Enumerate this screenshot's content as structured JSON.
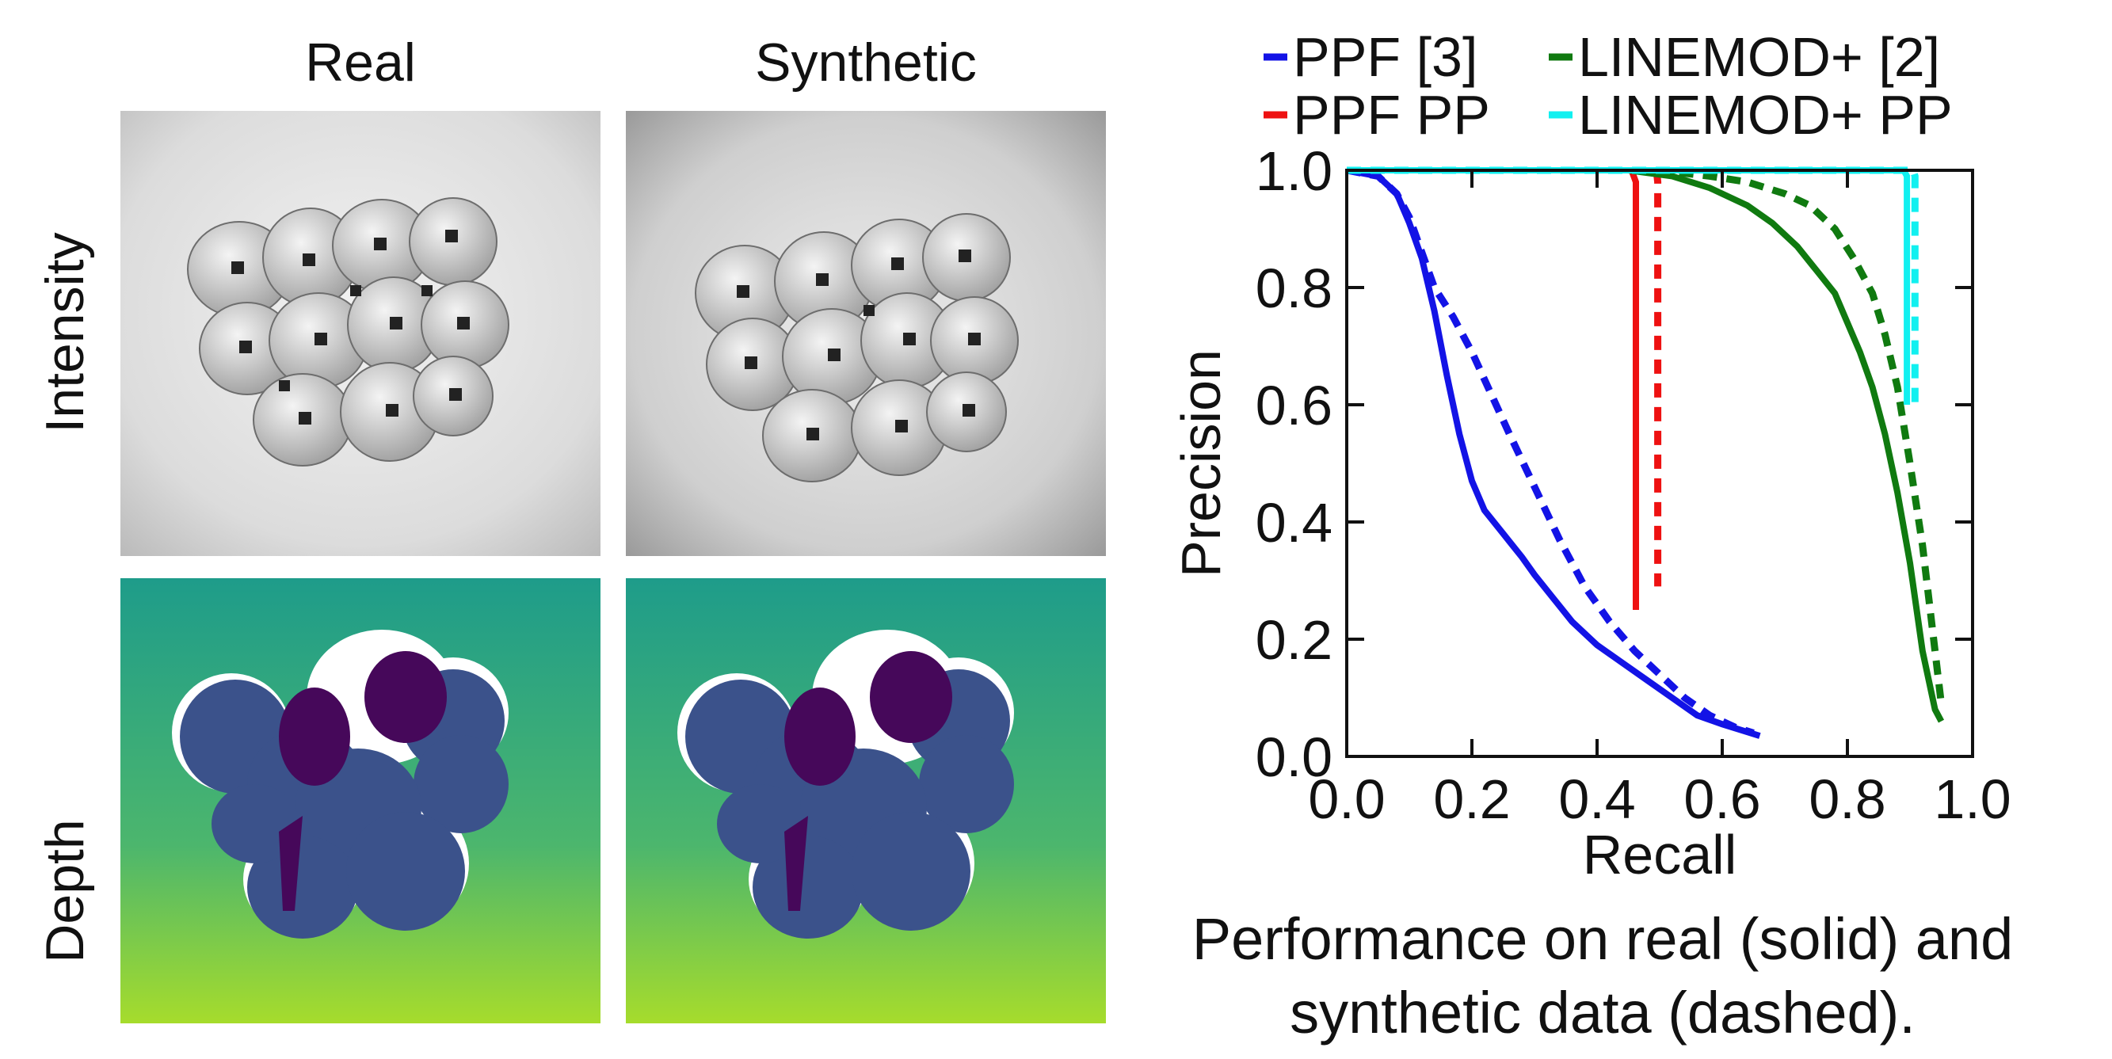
{
  "figure": {
    "column_titles": [
      "Real",
      "Synthetic"
    ],
    "row_titles": [
      "Intensity",
      "Depth"
    ],
    "caption_lines": [
      "Performance on real (solid) and",
      "synthetic data (dashed)."
    ]
  },
  "colors": {
    "ppf": "#1313e6",
    "ppf_pp": "#ee1111",
    "linemod": "#107a10",
    "linemod_pp": "#11f0f0",
    "depth_background_top": "#1e9c8a",
    "depth_background_bottom": "#a6dc2c",
    "depth_object_dark": "#46085a",
    "depth_object_mid": "#3b528b"
  },
  "chart_data": {
    "type": "line",
    "xlabel": "Recall",
    "ylabel": "Precision",
    "xlim": [
      0.0,
      1.0
    ],
    "ylim": [
      0.0,
      1.0
    ],
    "xticks": [
      "0.0",
      "0.2",
      "0.4",
      "0.6",
      "0.8",
      "1.0"
    ],
    "yticks": [
      "0.0",
      "0.2",
      "0.4",
      "0.6",
      "0.8",
      "1.0"
    ],
    "grid": false,
    "legend_position": "top",
    "legend": [
      "PPF [3]",
      "LINEMOD+ [2]",
      "PPF PP",
      "LINEMOD+ PP"
    ],
    "series": [
      {
        "name": "PPF [3]",
        "style": "solid",
        "color_key": "ppf",
        "x": [
          0.0,
          0.05,
          0.08,
          0.1,
          0.12,
          0.14,
          0.16,
          0.18,
          0.2,
          0.22,
          0.25,
          0.28,
          0.3,
          0.33,
          0.36,
          0.4,
          0.44,
          0.48,
          0.52,
          0.56,
          0.6,
          0.63,
          0.66
        ],
        "y": [
          1.0,
          0.99,
          0.96,
          0.91,
          0.85,
          0.76,
          0.65,
          0.55,
          0.47,
          0.42,
          0.38,
          0.34,
          0.31,
          0.27,
          0.23,
          0.19,
          0.16,
          0.13,
          0.1,
          0.07,
          0.055,
          0.045,
          0.035
        ]
      },
      {
        "name": "PPF [3]",
        "style": "dashed",
        "color_key": "ppf",
        "x": [
          0.0,
          0.05,
          0.08,
          0.1,
          0.12,
          0.14,
          0.17,
          0.2,
          0.23,
          0.26,
          0.3,
          0.34,
          0.38,
          0.42,
          0.46,
          0.5,
          0.54,
          0.58,
          0.62,
          0.65
        ],
        "y": [
          1.0,
          0.99,
          0.96,
          0.92,
          0.86,
          0.8,
          0.75,
          0.69,
          0.62,
          0.55,
          0.46,
          0.37,
          0.29,
          0.23,
          0.18,
          0.14,
          0.1,
          0.07,
          0.05,
          0.04
        ]
      },
      {
        "name": "PPF PP",
        "style": "solid",
        "color_key": "ppf_pp",
        "x": [
          0.0,
          0.455,
          0.462,
          0.462
        ],
        "y": [
          1.0,
          1.0,
          0.98,
          0.25
        ]
      },
      {
        "name": "PPF PP",
        "style": "dashed",
        "color_key": "ppf_pp",
        "x": [
          0.0,
          0.495,
          0.497,
          0.497
        ],
        "y": [
          1.0,
          1.0,
          0.98,
          0.29
        ]
      },
      {
        "name": "LINEMOD+ [2]",
        "style": "solid",
        "color_key": "linemod",
        "x": [
          0.0,
          0.45,
          0.52,
          0.58,
          0.64,
          0.68,
          0.72,
          0.75,
          0.78,
          0.8,
          0.82,
          0.84,
          0.86,
          0.88,
          0.9,
          0.92,
          0.94,
          0.95
        ],
        "y": [
          1.0,
          1.0,
          0.99,
          0.97,
          0.94,
          0.91,
          0.87,
          0.83,
          0.79,
          0.74,
          0.69,
          0.63,
          0.55,
          0.45,
          0.33,
          0.18,
          0.08,
          0.06
        ]
      },
      {
        "name": "LINEMOD+ [2]",
        "style": "dashed",
        "color_key": "linemod",
        "x": [
          0.0,
          0.5,
          0.58,
          0.64,
          0.7,
          0.74,
          0.78,
          0.81,
          0.84,
          0.86,
          0.88,
          0.9,
          0.92,
          0.94,
          0.95
        ],
        "y": [
          1.0,
          1.0,
          0.99,
          0.98,
          0.96,
          0.94,
          0.9,
          0.85,
          0.79,
          0.72,
          0.63,
          0.5,
          0.36,
          0.18,
          0.09
        ]
      },
      {
        "name": "LINEMOD+ PP",
        "style": "solid",
        "color_key": "linemod_pp",
        "x": [
          0.0,
          0.89,
          0.895,
          0.895
        ],
        "y": [
          1.0,
          1.0,
          0.99,
          0.6
        ]
      },
      {
        "name": "LINEMOD+ PP",
        "style": "dashed",
        "color_key": "linemod_pp",
        "x": [
          0.0,
          0.905,
          0.908,
          0.908
        ],
        "y": [
          1.0,
          1.0,
          0.99,
          0.59
        ]
      }
    ]
  }
}
